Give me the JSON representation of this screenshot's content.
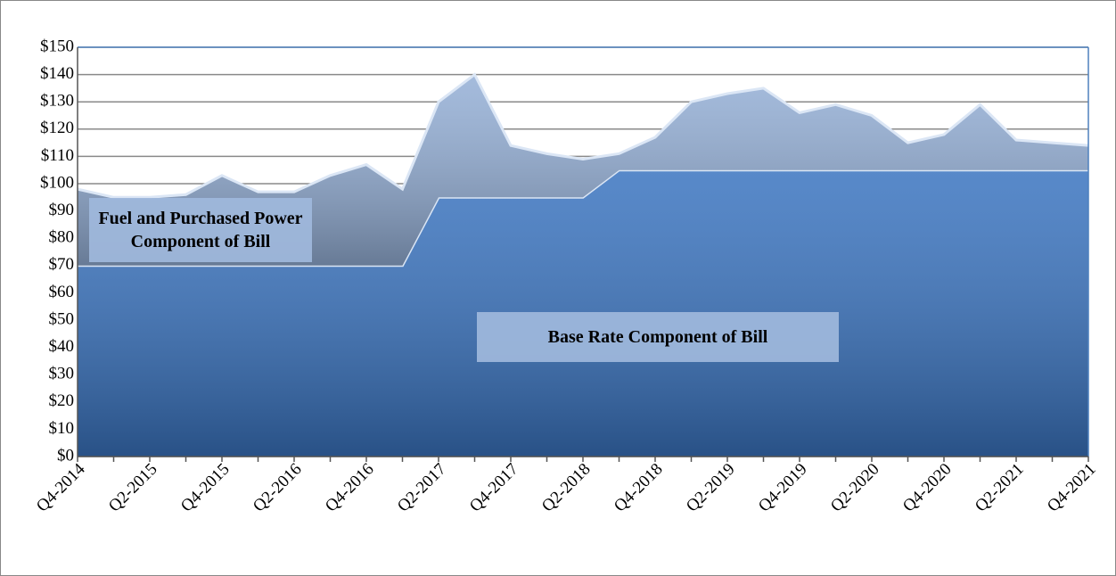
{
  "chart_data": {
    "type": "stacked_area",
    "categories": [
      "Q4-2014",
      null,
      "Q2-2015",
      null,
      "Q4-2015",
      null,
      "Q2-2016",
      null,
      "Q4-2016",
      null,
      "Q2-2017",
      null,
      "Q4-2017",
      null,
      "Q2-2018",
      null,
      "Q4-2018",
      null,
      "Q2-2019",
      null,
      "Q4-2019",
      null,
      "Q2-2020",
      null,
      "Q4-2020",
      null,
      "Q2-2021",
      null,
      "Q4-2021"
    ],
    "series": [
      {
        "name": "Base Rate Component of Bill",
        "color": "#3a74c0",
        "values": [
          70,
          70,
          70,
          70,
          70,
          70,
          70,
          70,
          70,
          70,
          95,
          95,
          95,
          95,
          95,
          105,
          105,
          105,
          105,
          105,
          105,
          105,
          105,
          105,
          105,
          105,
          105,
          105,
          105
        ]
      },
      {
        "name": "Fuel and Purchased Power Component of Bill",
        "color": "#94afd6",
        "values": [
          28,
          25,
          25,
          26,
          33,
          27,
          27,
          33,
          37,
          28,
          35,
          45,
          19,
          16,
          14,
          6,
          12,
          25,
          28,
          30,
          21,
          24,
          20,
          10,
          13,
          24,
          11,
          10,
          9
        ]
      }
    ],
    "ylim": [
      0,
      150
    ],
    "yticks": [
      {
        "value": 0,
        "label": "$0"
      },
      {
        "value": 10,
        "label": "$10"
      },
      {
        "value": 20,
        "label": "$20"
      },
      {
        "value": 30,
        "label": "$30"
      },
      {
        "value": 40,
        "label": "$40"
      },
      {
        "value": 50,
        "label": "$50"
      },
      {
        "value": 60,
        "label": "$60"
      },
      {
        "value": 70,
        "label": "$70"
      },
      {
        "value": 80,
        "label": "$80"
      },
      {
        "value": 90,
        "label": "$90"
      },
      {
        "value": 100,
        "label": "$100"
      },
      {
        "value": 110,
        "label": "$110"
      },
      {
        "value": 120,
        "label": "$120"
      },
      {
        "value": 130,
        "label": "$130"
      },
      {
        "value": 140,
        "label": "$140"
      },
      {
        "value": 150,
        "label": "$150"
      }
    ],
    "grid": true
  }
}
